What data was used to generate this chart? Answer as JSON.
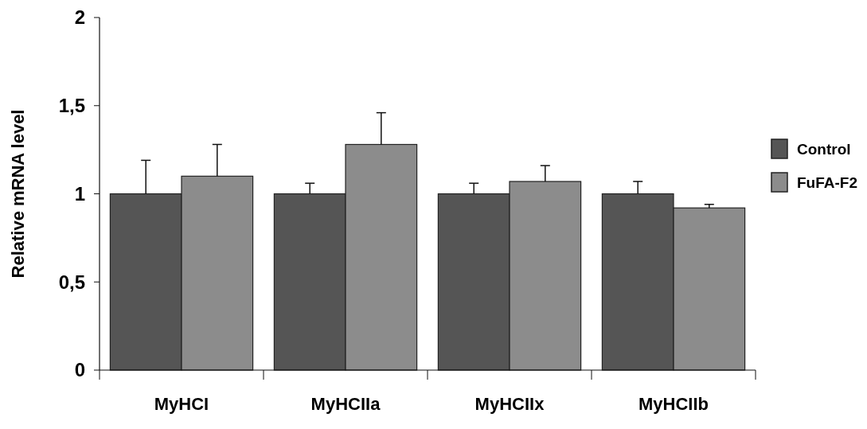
{
  "chart_data": {
    "type": "bar",
    "ylabel": "Relative mRNA level",
    "categories": [
      "MyHCI",
      "MyHCIIa",
      "MyHCIIx",
      "MyHCIIb"
    ],
    "series": [
      {
        "name": "Control",
        "color": "#555555",
        "values": [
          1,
          1,
          1,
          1
        ],
        "errors": [
          [
            1,
            1.19
          ],
          [
            1,
            1.06
          ],
          [
            1,
            1.06
          ],
          [
            1,
            1.07
          ]
        ]
      },
      {
        "name": "FuFA-F2",
        "color": "#8c8c8c",
        "values": [
          1.1,
          1.28,
          1.07,
          0.92
        ],
        "errors": [
          [
            1.1,
            1.28
          ],
          [
            1.28,
            1.46
          ],
          [
            1.07,
            1.16
          ],
          [
            0.92,
            0.94
          ]
        ]
      }
    ],
    "ylim": [
      0,
      2
    ],
    "yticks": [
      0,
      {
        "value": 0.5,
        "label": "0,5"
      },
      1,
      {
        "value": 1.5,
        "label": "1,5"
      },
      2
    ],
    "grid": false,
    "legend": "right"
  }
}
